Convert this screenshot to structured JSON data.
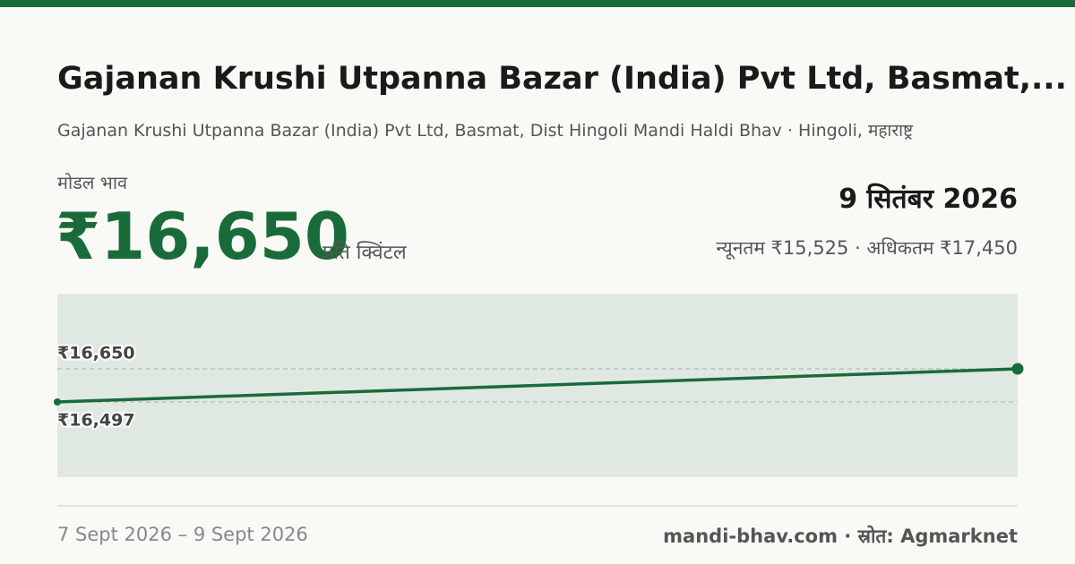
{
  "header": {
    "title": "Gajanan Krushi Utpanna Bazar (India) Pvt Ltd, Basmat,...",
    "subtitle": "Gajanan Krushi Utpanna Bazar (India) Pvt Ltd, Basmat, Dist Hingoli Mandi Haldi Bhav · Hingoli, महाराष्ट्र"
  },
  "price": {
    "label": "मोडल भाव",
    "value": "₹16,650",
    "unit": "प्रति क्विंटल",
    "date": "9 सितंबर 2026",
    "range": "न्यूनतम ₹15,525 · अधिकतम ₹17,450"
  },
  "chart_data": {
    "type": "line",
    "values": [
      16497,
      16650
    ],
    "value_labels": [
      "₹16,497",
      "₹16,650"
    ],
    "color": "#1a6b3a",
    "ylim": [
      16150,
      16997
    ]
  },
  "footer": {
    "dates": "7 Sept 2026 – 9 Sept 2026",
    "source": "mandi-bhav.com · स्रोत: Agmarknet"
  }
}
